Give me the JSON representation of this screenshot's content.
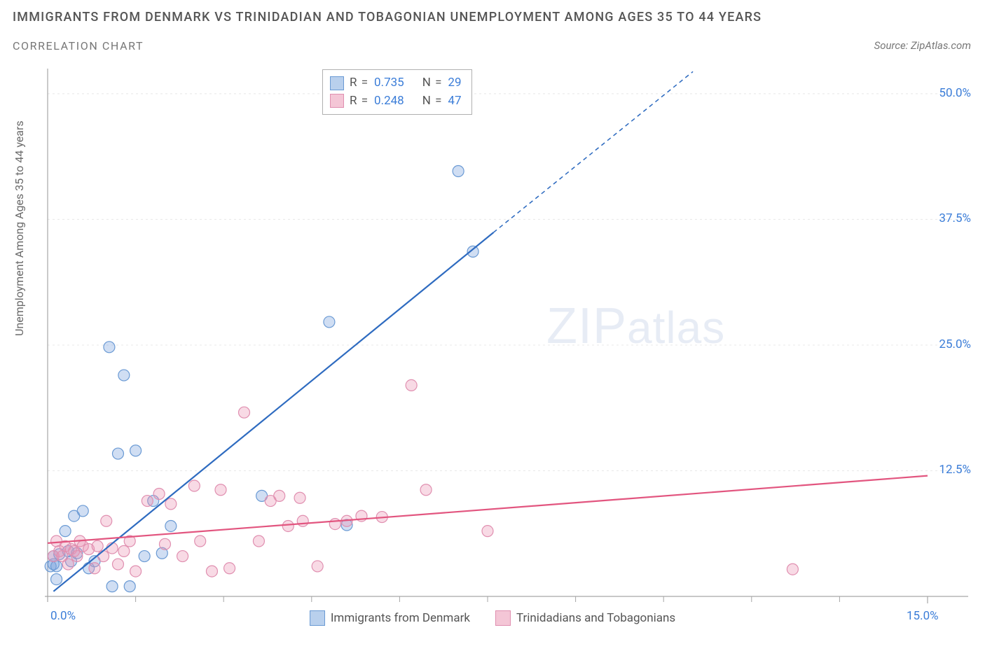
{
  "title_line1": "IMMIGRANTS FROM DENMARK VS TRINIDADIAN AND TOBAGONIAN UNEMPLOYMENT AMONG AGES 35 TO 44 YEARS",
  "title_line2": "CORRELATION CHART",
  "source_prefix": "Source: ",
  "source_name": "ZipAtlas.com",
  "y_axis_label": "Unemployment Among Ages 35 to 44 years",
  "watermark_zip": "ZIP",
  "watermark_atlas": "atlas",
  "chart": {
    "type": "scatter",
    "background_color": "#ffffff",
    "grid_color": "#e8e8e8",
    "axis_color": "#a6a6a6",
    "tick_label_color": "#3b7dd8",
    "xlim": [
      0,
      15
    ],
    "ylim": [
      0,
      52.5
    ],
    "x_ticks": [
      0,
      7.5,
      15
    ],
    "x_tick_labels": [
      "0.0%",
      "",
      "15.0%"
    ],
    "x_minor_ticks": [
      1.5,
      3.0,
      4.5,
      6.0,
      7.5,
      9.0,
      10.5,
      12.0,
      13.5
    ],
    "y_ticks": [
      12.5,
      25.0,
      37.5,
      50.0
    ],
    "y_tick_labels": [
      "12.5%",
      "25.0%",
      "37.5%",
      "50.0%"
    ],
    "marker_radius": 8,
    "marker_stroke_width": 1.2,
    "trend_line_width": 2.2
  },
  "series": [
    {
      "name": "Immigrants from Denmark",
      "color_fill": "rgba(120,160,220,0.35)",
      "color_stroke": "#6a9ad4",
      "swatch_fill": "#b9d0ed",
      "swatch_border": "#6a9ad4",
      "trend_color": "#2e6bc0",
      "R": "0.735",
      "N": "29",
      "trend_solid": {
        "x1": 0.1,
        "y1": 0.5,
        "x2": 7.6,
        "y2": 36.2
      },
      "trend_dash": {
        "x1": 7.6,
        "y1": 36.2,
        "x2": 11.0,
        "y2": 52.2
      },
      "points": [
        [
          0.05,
          3.0
        ],
        [
          0.1,
          3.2
        ],
        [
          0.1,
          4.0
        ],
        [
          0.15,
          3.0
        ],
        [
          0.15,
          1.7
        ],
        [
          0.2,
          4.2
        ],
        [
          0.3,
          6.5
        ],
        [
          0.35,
          4.5
        ],
        [
          0.4,
          3.5
        ],
        [
          0.45,
          8.0
        ],
        [
          0.5,
          4.3
        ],
        [
          0.6,
          8.5
        ],
        [
          0.7,
          2.8
        ],
        [
          0.8,
          3.5
        ],
        [
          1.05,
          24.8
        ],
        [
          1.1,
          1.0
        ],
        [
          1.2,
          14.2
        ],
        [
          1.3,
          22.0
        ],
        [
          1.4,
          1.0
        ],
        [
          1.5,
          14.5
        ],
        [
          1.65,
          4.0
        ],
        [
          1.8,
          9.5
        ],
        [
          1.95,
          4.3
        ],
        [
          2.1,
          7.0
        ],
        [
          3.65,
          10.0
        ],
        [
          4.8,
          27.3
        ],
        [
          5.1,
          7.1
        ],
        [
          7.0,
          42.3
        ],
        [
          7.25,
          34.3
        ]
      ]
    },
    {
      "name": "Trinidadians and Tobagonians",
      "color_fill": "rgba(235,150,180,0.35)",
      "color_stroke": "#e08fb0",
      "swatch_fill": "#f4c6d6",
      "swatch_border": "#e08fb0",
      "trend_color": "#e2557f",
      "R": "0.248",
      "N": "47",
      "trend_solid": {
        "x1": 0.0,
        "y1": 5.3,
        "x2": 15.0,
        "y2": 12.0
      },
      "points": [
        [
          0.1,
          4.0
        ],
        [
          0.15,
          5.5
        ],
        [
          0.2,
          4.5
        ],
        [
          0.25,
          4.0
        ],
        [
          0.3,
          5.0
        ],
        [
          0.35,
          3.2
        ],
        [
          0.4,
          4.7
        ],
        [
          0.45,
          4.5
        ],
        [
          0.5,
          4.0
        ],
        [
          0.55,
          5.5
        ],
        [
          0.6,
          5.0
        ],
        [
          0.7,
          4.7
        ],
        [
          0.8,
          2.8
        ],
        [
          0.85,
          5.0
        ],
        [
          0.95,
          4.0
        ],
        [
          1.0,
          7.5
        ],
        [
          1.1,
          4.8
        ],
        [
          1.2,
          3.2
        ],
        [
          1.3,
          4.5
        ],
        [
          1.4,
          5.5
        ],
        [
          1.5,
          2.5
        ],
        [
          1.7,
          9.5
        ],
        [
          1.9,
          10.2
        ],
        [
          2.0,
          5.2
        ],
        [
          2.1,
          9.2
        ],
        [
          2.3,
          4.0
        ],
        [
          2.5,
          11.0
        ],
        [
          2.6,
          5.5
        ],
        [
          2.8,
          2.5
        ],
        [
          2.95,
          10.6
        ],
        [
          3.1,
          2.8
        ],
        [
          3.35,
          18.3
        ],
        [
          3.6,
          5.5
        ],
        [
          3.8,
          9.5
        ],
        [
          3.95,
          10.0
        ],
        [
          4.1,
          7.0
        ],
        [
          4.3,
          9.8
        ],
        [
          4.35,
          7.5
        ],
        [
          4.6,
          3.0
        ],
        [
          4.9,
          7.2
        ],
        [
          5.1,
          7.5
        ],
        [
          5.35,
          8.0
        ],
        [
          6.2,
          21.0
        ],
        [
          6.45,
          10.6
        ],
        [
          7.5,
          6.5
        ],
        [
          12.7,
          2.7
        ],
        [
          5.7,
          7.9
        ]
      ]
    }
  ],
  "legend_top_rows": [
    {
      "swatch_series": 0,
      "R_label": "R =",
      "N_label": "N ="
    },
    {
      "swatch_series": 1,
      "R_label": "R =",
      "N_label": "N ="
    }
  ]
}
